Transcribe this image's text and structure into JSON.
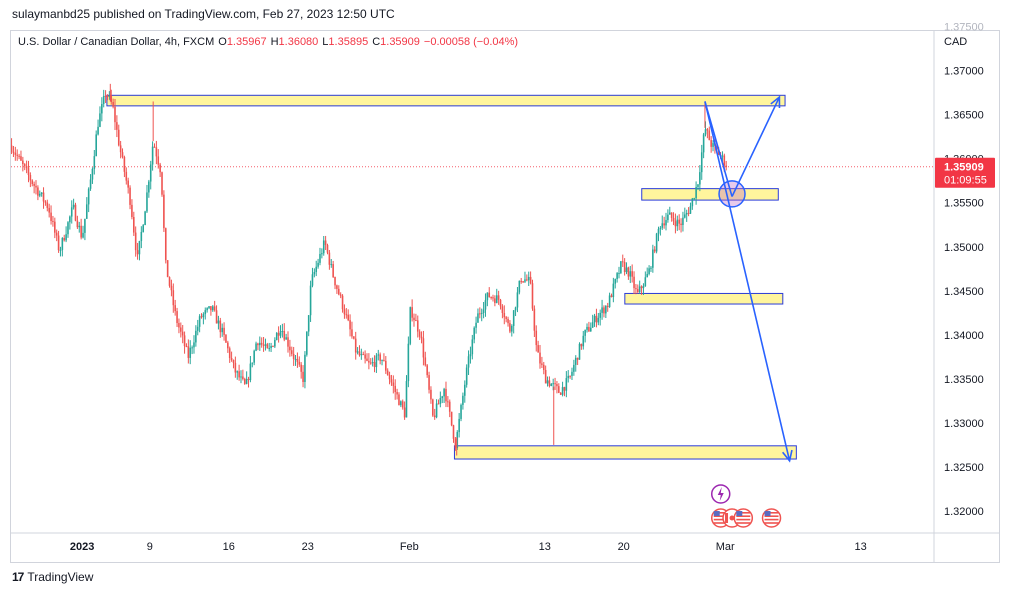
{
  "header": {
    "published": "sulaymanbd25 published on TradingView.com, Feb 27, 2023 12:50 UTC"
  },
  "legend": {
    "symbol": "U.S. Dollar / Canadian Dollar, 4h, FXCM",
    "open_label": "O",
    "open": "1.35967",
    "high_label": "H",
    "high": "1.36080",
    "low_label": "L",
    "low": "1.35895",
    "close_label": "C",
    "close": "1.35909",
    "change": "−0.00058 (−0.04%)"
  },
  "footer": {
    "brand": "TradingView",
    "logo_text": "17"
  },
  "chart_data": {
    "type": "candlestick",
    "currency": "CAD",
    "y_ticks": [
      "1.37000",
      "1.36500",
      "1.36000",
      "1.35500",
      "1.35000",
      "1.34500",
      "1.34000",
      "1.33500",
      "1.33000",
      "1.32500",
      "1.32000"
    ],
    "y_tick_values": [
      1.37,
      1.365,
      1.36,
      1.355,
      1.35,
      1.345,
      1.34,
      1.335,
      1.33,
      1.325,
      1.32
    ],
    "ylim": [
      1.3175,
      1.3745
    ],
    "x_ticks": [
      {
        "label": "2023",
        "bold": true,
        "day": 0
      },
      {
        "label": "9",
        "bold": false,
        "day": 6
      },
      {
        "label": "16",
        "bold": false,
        "day": 13
      },
      {
        "label": "23",
        "bold": false,
        "day": 20
      },
      {
        "label": "Feb",
        "bold": false,
        "day": 29
      },
      {
        "label": "13",
        "bold": false,
        "day": 41
      },
      {
        "label": "20",
        "bold": false,
        "day": 48
      },
      {
        "label": "Mar",
        "bold": false,
        "day": 57
      },
      {
        "label": "13",
        "bold": false,
        "day": 69
      }
    ],
    "xlim": [
      -6.3,
      75.5
    ],
    "last_price": {
      "value": 1.35909,
      "label": "1.35909",
      "countdown": "01:09:55"
    },
    "colors": {
      "up": "#26a69a",
      "down": "#ef5350",
      "zone_fill": "#fff59d",
      "zone_border": "#2a3bd8",
      "arrow": "#2962ff",
      "last_price": "#f23645"
    },
    "candle_path": [
      [
        -6.3,
        1.3615
      ],
      [
        -4.5,
        1.3575
      ],
      [
        -3,
        1.3545
      ],
      [
        -2,
        1.3495
      ],
      [
        -0.8,
        1.3545
      ],
      [
        0,
        1.351
      ],
      [
        0.8,
        1.358
      ],
      [
        1.4,
        1.364
      ],
      [
        2.1,
        1.3675
      ],
      [
        2.7,
        1.366
      ],
      [
        3.3,
        1.3615
      ],
      [
        4.3,
        1.355
      ],
      [
        4.9,
        1.3485
      ],
      [
        5.7,
        1.3555
      ],
      [
        6.3,
        1.362
      ],
      [
        7,
        1.3585
      ],
      [
        7.4,
        1.348
      ],
      [
        8.3,
        1.342
      ],
      [
        9.4,
        1.3375
      ],
      [
        10.5,
        1.342
      ],
      [
        11.5,
        1.343
      ],
      [
        12.5,
        1.34
      ],
      [
        13.5,
        1.336
      ],
      [
        14.5,
        1.334
      ],
      [
        15.5,
        1.3395
      ],
      [
        16.5,
        1.338
      ],
      [
        17.6,
        1.341
      ],
      [
        18.6,
        1.338
      ],
      [
        19.6,
        1.335
      ],
      [
        20.3,
        1.346
      ],
      [
        21.5,
        1.3505
      ],
      [
        22.3,
        1.3465
      ],
      [
        23.3,
        1.3425
      ],
      [
        24.3,
        1.338
      ],
      [
        25.5,
        1.3365
      ],
      [
        26.5,
        1.3375
      ],
      [
        27.6,
        1.334
      ],
      [
        28.6,
        1.331
      ],
      [
        29.1,
        1.343
      ],
      [
        30,
        1.34
      ],
      [
        31.1,
        1.3305
      ],
      [
        32.1,
        1.334
      ],
      [
        33.1,
        1.3275
      ],
      [
        34.1,
        1.336
      ],
      [
        35,
        1.342
      ],
      [
        36,
        1.3445
      ],
      [
        37,
        1.344
      ],
      [
        37.9,
        1.3405
      ],
      [
        38.9,
        1.3465
      ],
      [
        39.7,
        1.346
      ],
      [
        40.3,
        1.338
      ],
      [
        41.1,
        1.335
      ],
      [
        42.3,
        1.3335
      ],
      [
        43.2,
        1.335
      ],
      [
        44.5,
        1.34
      ],
      [
        45.6,
        1.342
      ],
      [
        46.6,
        1.3435
      ],
      [
        47.8,
        1.348
      ],
      [
        48.5,
        1.347
      ],
      [
        49.2,
        1.3445
      ],
      [
        50.2,
        1.347
      ],
      [
        51.2,
        1.3525
      ],
      [
        52,
        1.3535
      ],
      [
        53,
        1.3525
      ],
      [
        53.9,
        1.3545
      ],
      [
        54.6,
        1.3575
      ],
      [
        55.2,
        1.3635
      ],
      [
        55.8,
        1.3615
      ],
      [
        56.5,
        1.3605
      ],
      [
        57.2,
        1.3591
      ]
    ],
    "extreme_wicks": [
      {
        "day": 2.5,
        "high": 1.3685
      },
      {
        "day": 6.3,
        "high": 1.3665
      },
      {
        "day": 33.2,
        "low": 1.3263
      },
      {
        "day": 41.8,
        "low": 1.3275
      },
      {
        "day": 55.2,
        "high": 1.3665
      }
    ],
    "zones": [
      {
        "name": "resistance-zone-top",
        "day_start": 2.2,
        "day_end": 62.3,
        "top": 1.3672,
        "bottom": 1.366
      },
      {
        "name": "mid-zone-upper",
        "day_start": 49.6,
        "day_end": 61.7,
        "top": 1.3566,
        "bottom": 1.3553
      },
      {
        "name": "mid-zone-lower",
        "day_start": 48.1,
        "day_end": 62.1,
        "top": 1.3447,
        "bottom": 1.3435
      },
      {
        "name": "support-zone-bottom",
        "day_start": 33.0,
        "day_end": 63.3,
        "top": 1.3274,
        "bottom": 1.3259
      }
    ],
    "arrows": [
      {
        "from": [
          55.2,
          1.3665
        ],
        "to": [
          57.6,
          1.3557
        ]
      },
      {
        "from": [
          57.6,
          1.3557
        ],
        "to": [
          61.8,
          1.367
        ],
        "head": true
      },
      {
        "from": [
          55.2,
          1.3665
        ],
        "to": [
          62.7,
          1.3257
        ],
        "head": true
      }
    ],
    "circle": {
      "day": 57.6,
      "value": 1.356
    },
    "events": [
      {
        "type": "lightning",
        "day": 56.6
      },
      {
        "type": "flag-us",
        "day": 56.6
      },
      {
        "type": "flag-ca",
        "day": 57.6
      },
      {
        "type": "flag-us",
        "day": 58.6
      },
      {
        "type": "flag-us",
        "day": 61.1
      }
    ]
  }
}
